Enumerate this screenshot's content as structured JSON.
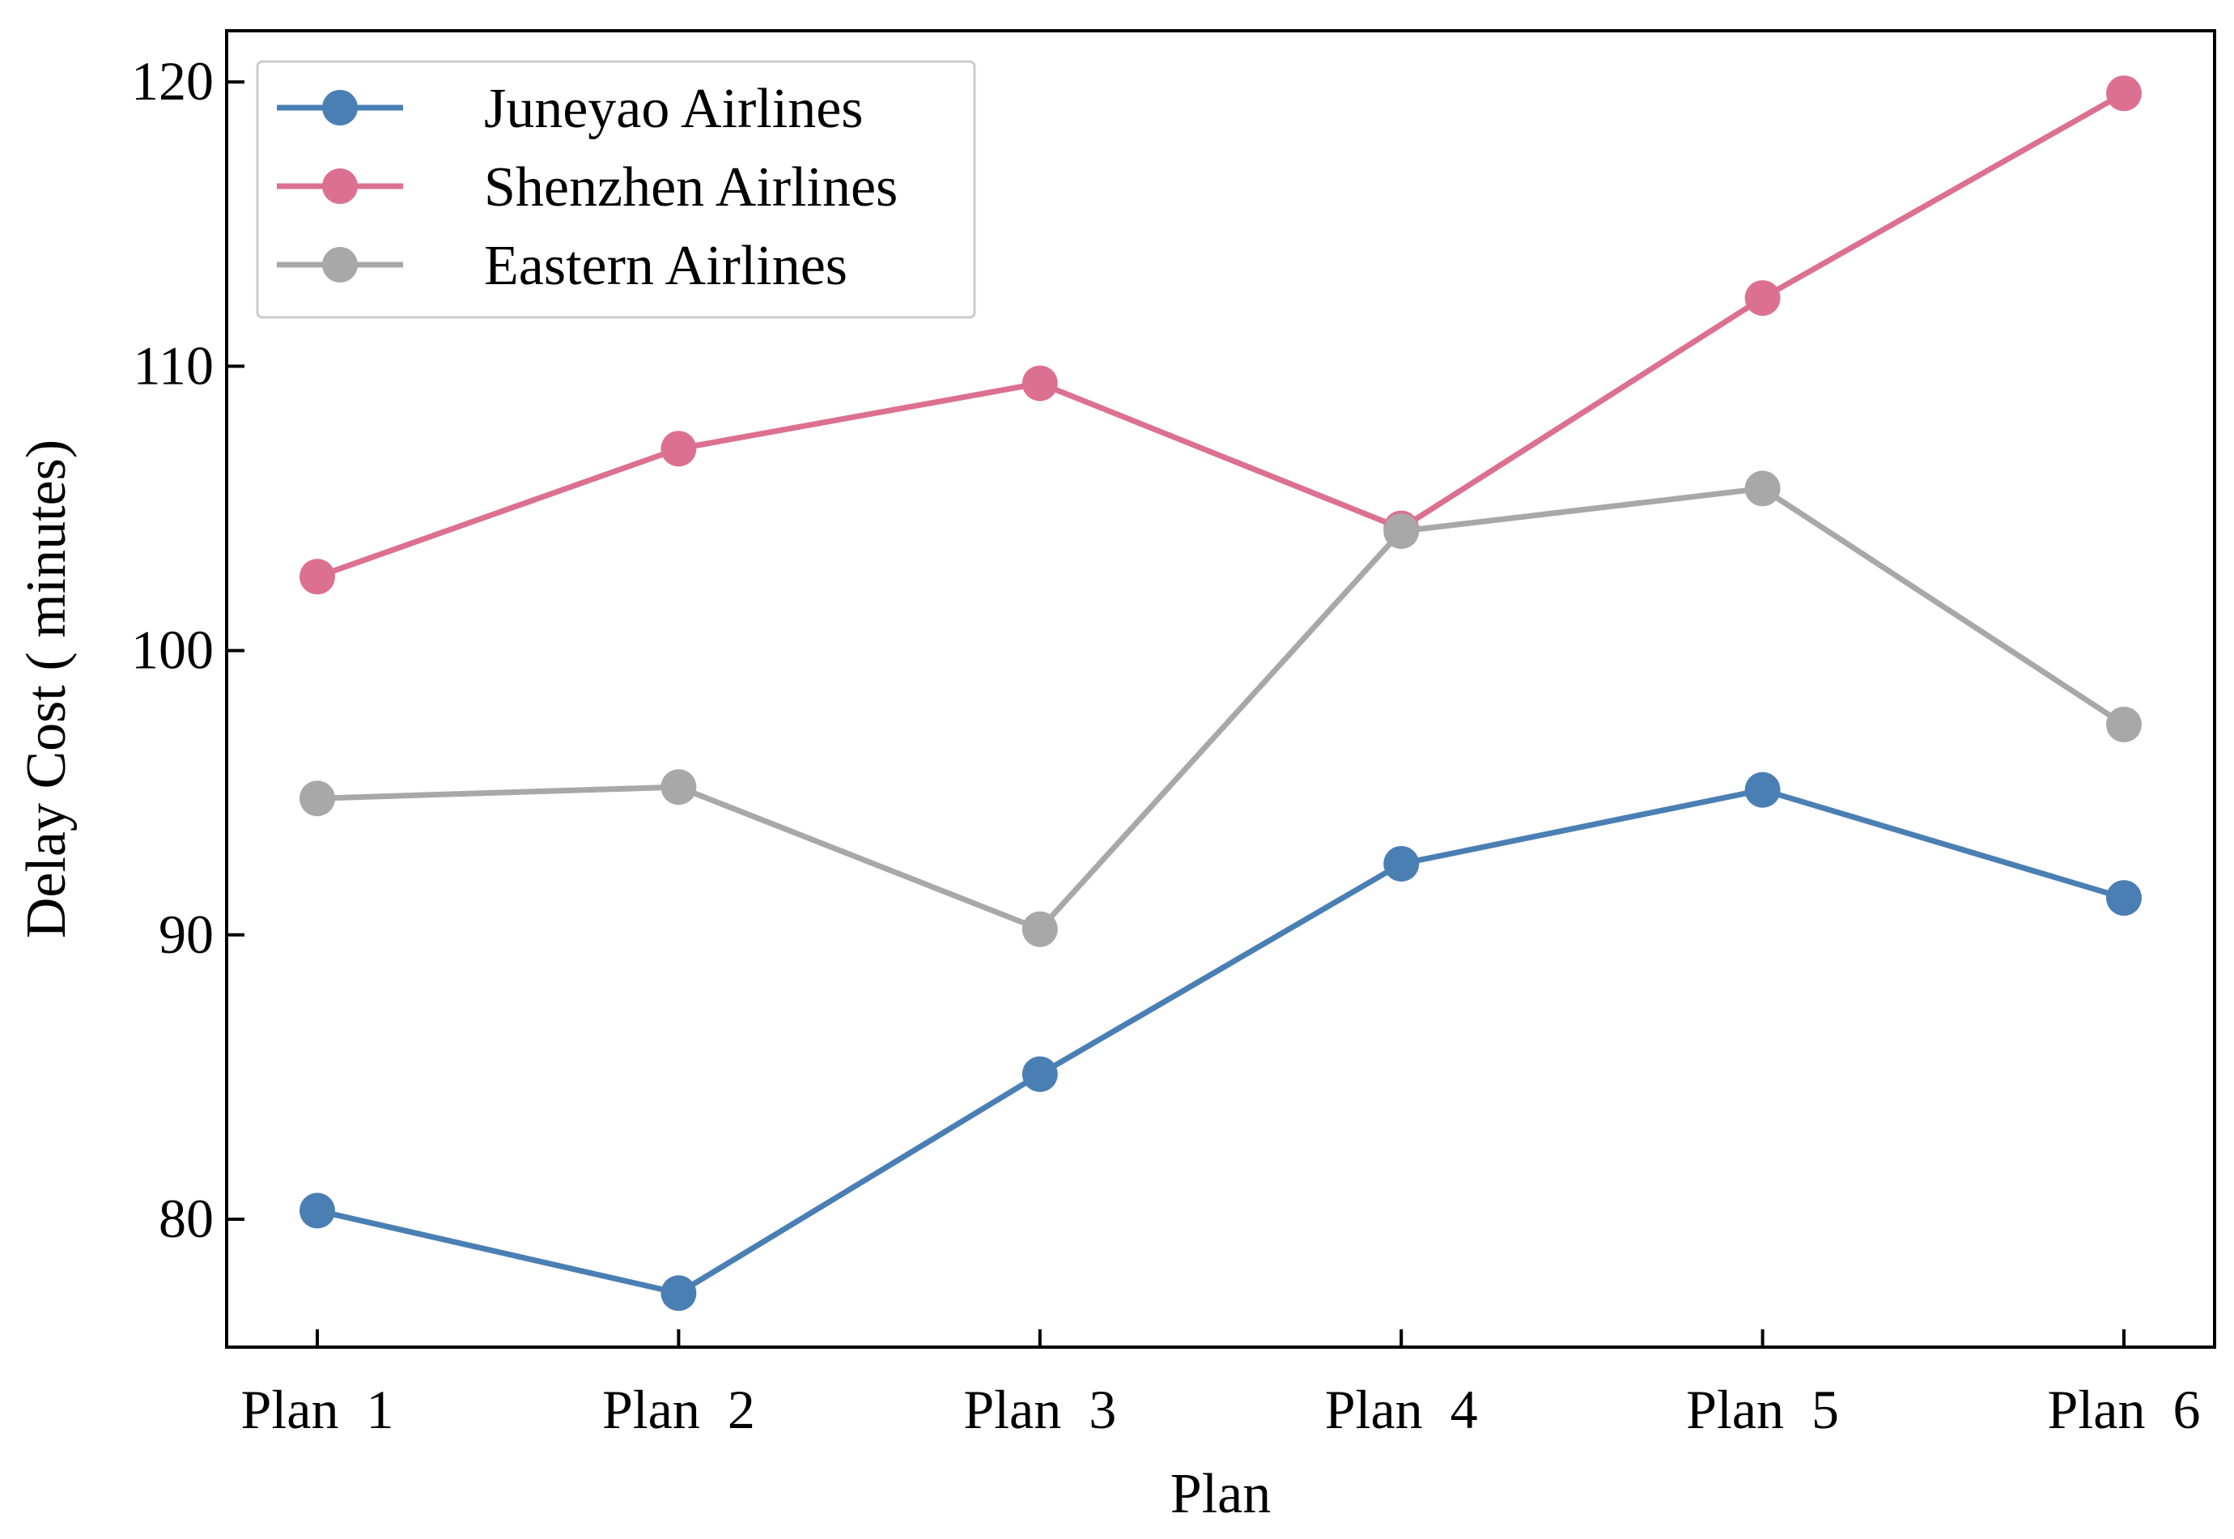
{
  "chart_data": {
    "type": "line",
    "title": "",
    "xlabel": "Plan",
    "ylabel": "Delay Cost ( minutes)",
    "categories": [
      "Plan  1",
      "Plan  2",
      "Plan  3",
      "Plan  4",
      "Plan  5",
      "Plan  6"
    ],
    "ylim": [
      75.5,
      121.8
    ],
    "yticks": [
      80,
      90,
      100,
      110,
      120
    ],
    "ytick_labels": [
      "80",
      "90",
      "100",
      "110",
      "120"
    ],
    "grid": false,
    "legend_position": "top-left",
    "series": [
      {
        "name": "Juneyao Airlines",
        "color": "#4a7fb4",
        "values": [
          80.3,
          77.4,
          85.1,
          92.5,
          95.1,
          91.3
        ]
      },
      {
        "name": "Shenzhen Airlines",
        "color": "#dc7090",
        "values": [
          102.6,
          107.1,
          109.4,
          104.3,
          112.4,
          119.6
        ]
      },
      {
        "name": "Eastern Airlines",
        "color": "#a8a8a8",
        "values": [
          94.8,
          95.2,
          90.2,
          104.2,
          105.7,
          97.4
        ]
      }
    ]
  }
}
